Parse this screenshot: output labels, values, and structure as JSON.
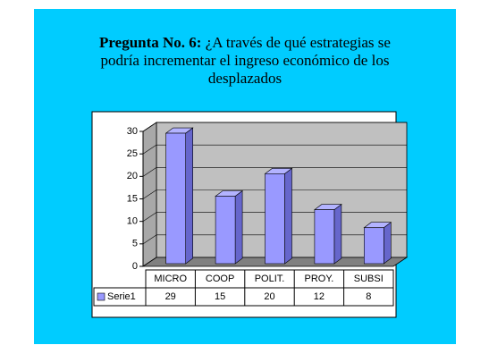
{
  "chart_data": {
    "type": "bar",
    "title_bold": "Pregunta No. 6:",
    "title": "¿A través de qué estrategias se podría incrementar el ingreso económico de los desplazados",
    "categories": [
      "MICRO",
      "COOP",
      "POLIT.",
      "PROY.",
      "SUBSI"
    ],
    "series": [
      {
        "name": "Serie1",
        "color": "#9999ff",
        "values": [
          29,
          15,
          20,
          12,
          8
        ]
      }
    ],
    "ylim": [
      0,
      30
    ],
    "yticks": [
      0,
      5,
      10,
      15,
      20,
      25,
      30
    ],
    "grid": true
  }
}
